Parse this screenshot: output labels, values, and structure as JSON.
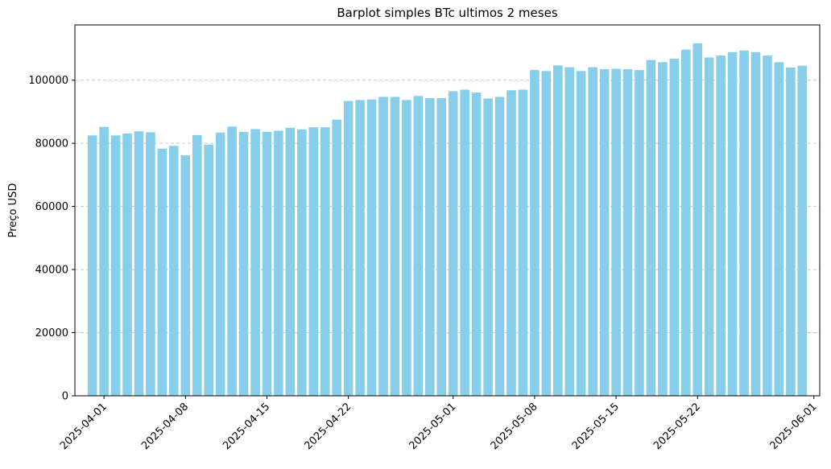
{
  "chart_data": {
    "type": "bar",
    "title": "Barplot simples BTc ultimos 2 meses",
    "xlabel": "",
    "ylabel": "Preço USD",
    "bar_color": "#87ceeb",
    "grid": "y-dashed",
    "ylim": [
      0,
      117500
    ],
    "y_ticks": [
      0,
      20000,
      40000,
      60000,
      80000,
      100000
    ],
    "x_ticks": [
      "2025-04-01",
      "2025-04-08",
      "2025-04-15",
      "2025-04-22",
      "2025-05-01",
      "2025-05-08",
      "2025-05-15",
      "2025-05-22",
      "2025-06-01"
    ],
    "dates": [
      "2025-03-31",
      "2025-04-01",
      "2025-04-02",
      "2025-04-03",
      "2025-04-04",
      "2025-04-05",
      "2025-04-06",
      "2025-04-07",
      "2025-04-08",
      "2025-04-09",
      "2025-04-10",
      "2025-04-11",
      "2025-04-12",
      "2025-04-13",
      "2025-04-14",
      "2025-04-15",
      "2025-04-16",
      "2025-04-17",
      "2025-04-18",
      "2025-04-19",
      "2025-04-20",
      "2025-04-21",
      "2025-04-22",
      "2025-04-23",
      "2025-04-24",
      "2025-04-25",
      "2025-04-26",
      "2025-04-27",
      "2025-04-28",
      "2025-04-29",
      "2025-04-30",
      "2025-05-01",
      "2025-05-02",
      "2025-05-03",
      "2025-05-04",
      "2025-05-05",
      "2025-05-06",
      "2025-05-07",
      "2025-05-08",
      "2025-05-09",
      "2025-05-10",
      "2025-05-11",
      "2025-05-12",
      "2025-05-13",
      "2025-05-14",
      "2025-05-15",
      "2025-05-16",
      "2025-05-17",
      "2025-05-18",
      "2025-05-19",
      "2025-05-20",
      "2025-05-21",
      "2025-05-22",
      "2025-05-23",
      "2025-05-24",
      "2025-05-25",
      "2025-05-26",
      "2025-05-27",
      "2025-05-28",
      "2025-05-29",
      "2025-05-30",
      "2025-05-31"
    ],
    "values": [
      82500,
      85200,
      82500,
      83100,
      83800,
      83500,
      78300,
      79200,
      76200,
      82600,
      79600,
      83400,
      85300,
      83600,
      84500,
      83600,
      84000,
      84900,
      84400,
      85100,
      85100,
      87500,
      93400,
      93700,
      93900,
      94700,
      94700,
      93700,
      95000,
      94300,
      94300,
      96500,
      97000,
      96100,
      94200,
      94700,
      96800,
      97000,
      103200,
      102900,
      104700,
      104100,
      102900,
      104100,
      103500,
      103600,
      103500,
      103200,
      106400,
      105700,
      106800,
      109700,
      111700,
      107200,
      107800,
      108900,
      109400,
      108900,
      107800,
      105700,
      104000,
      104600
    ]
  }
}
